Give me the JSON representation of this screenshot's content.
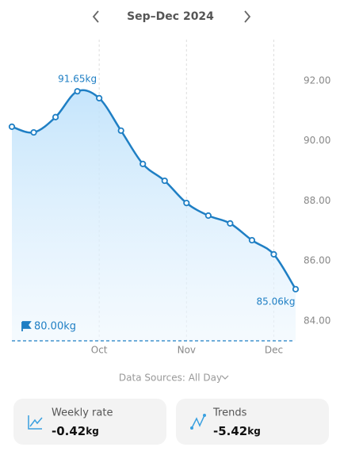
{
  "header": {
    "title": "Sep–Dec 2024"
  },
  "chart_data": {
    "type": "line",
    "categories": [
      null,
      null,
      null,
      null,
      "Oct",
      null,
      null,
      null,
      "Nov",
      null,
      null,
      null,
      "Dec",
      null
    ],
    "series": [
      {
        "color": "#1f7fc4",
        "values": [
          90.47,
          90.28,
          90.79,
          91.65,
          91.42,
          90.34,
          89.23,
          88.67,
          87.93,
          87.51,
          87.25,
          86.69,
          86.22,
          85.06
        ],
        "value_labels": [
          null,
          null,
          null,
          "91.65kg",
          null,
          null,
          null,
          null,
          null,
          null,
          null,
          null,
          null,
          "85.06kg"
        ]
      }
    ],
    "ylim": [
      83.34,
      93.37
    ],
    "yticks": [
      {
        "value": 84,
        "label": "84.00"
      },
      {
        "value": 86,
        "label": "86.00"
      },
      {
        "value": 88,
        "label": "88.00"
      },
      {
        "value": 90,
        "label": "90.00"
      },
      {
        "value": 92,
        "label": "92.00"
      }
    ],
    "goal_label": "80.00kg"
  },
  "data_source": "Data Sources: All Day",
  "stats": [
    {
      "label": "Weekly rate",
      "value": "-0.42",
      "unit": "kg"
    },
    {
      "label": "Trends",
      "value": "-5.42",
      "unit": "kg"
    }
  ]
}
